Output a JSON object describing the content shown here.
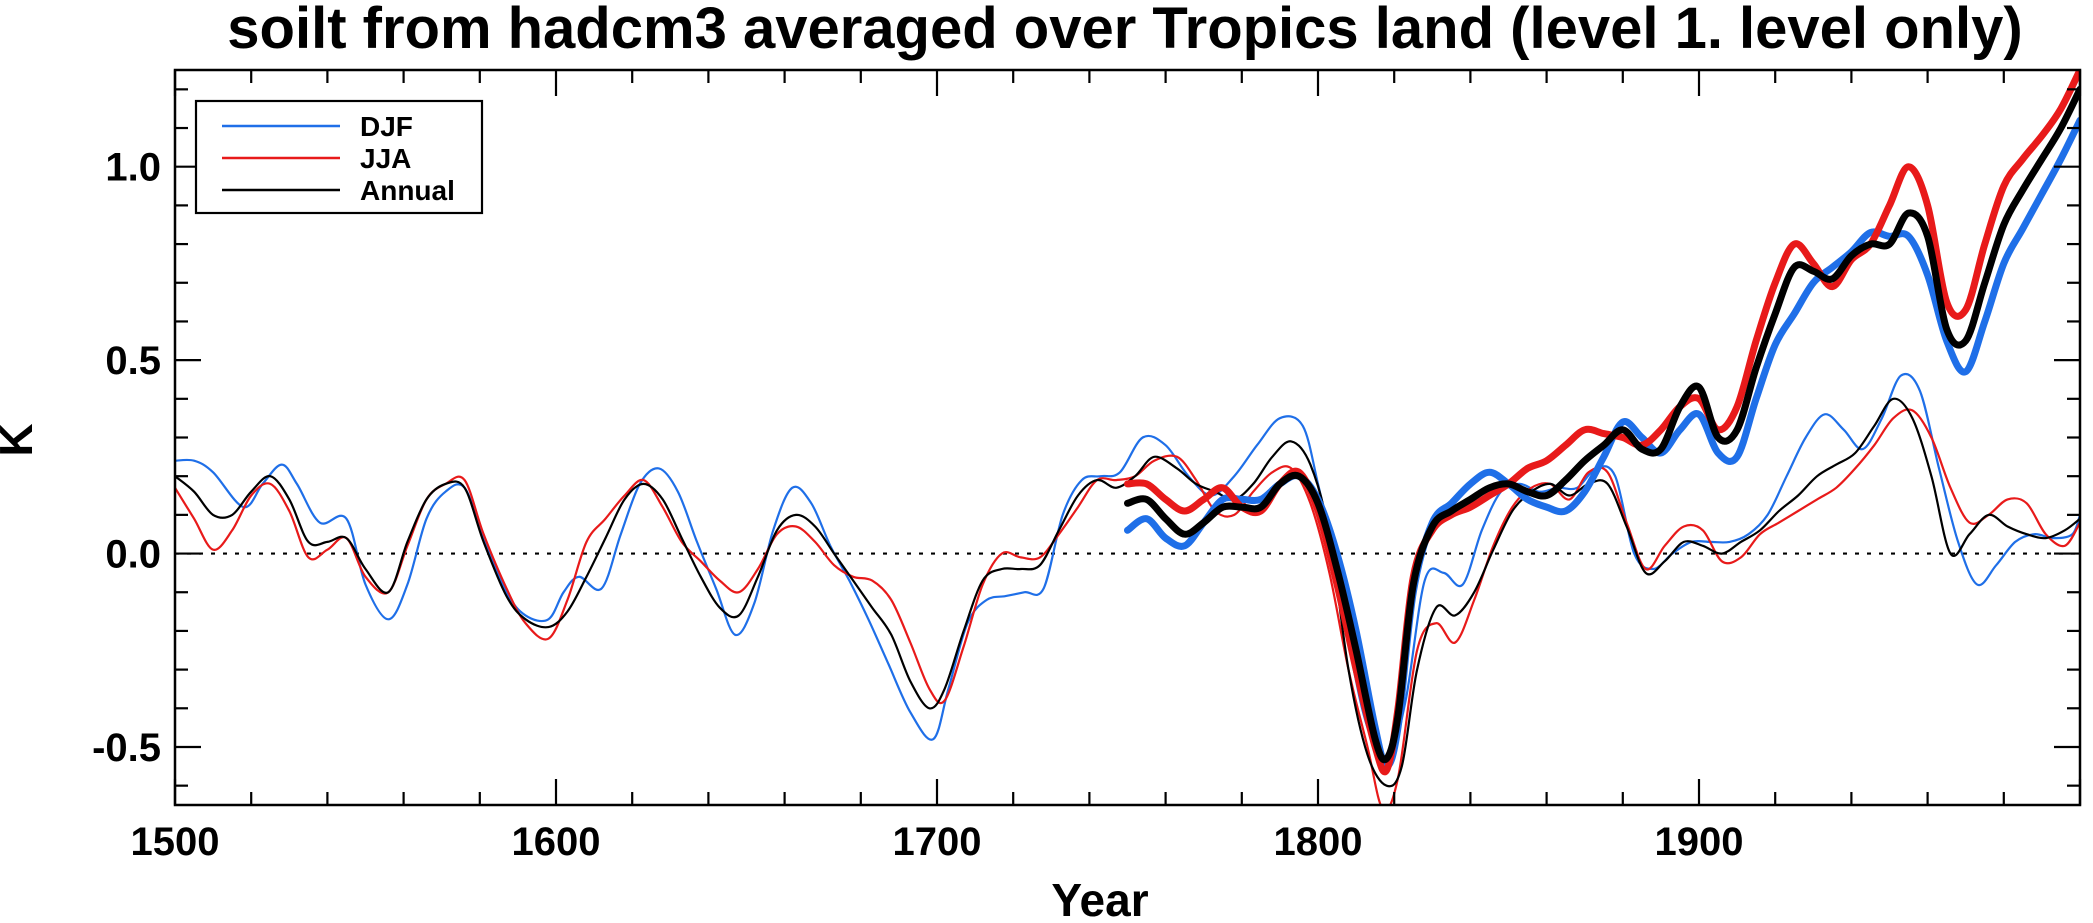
{
  "chart_data": {
    "type": "line",
    "title": "soilt from hadcm3 averaged over Tropics land (level 1. level only)",
    "xlabel": "Year",
    "ylabel": "K",
    "xlim": [
      1500,
      2000
    ],
    "ylim": [
      -0.65,
      1.25
    ],
    "x_ticks": [
      1500,
      1600,
      1700,
      1800,
      1900
    ],
    "x_tick_labels": [
      "1500",
      "1600",
      "1700",
      "1800",
      "1900"
    ],
    "y_ticks": [
      -0.5,
      0.0,
      0.5,
      1.0
    ],
    "y_tick_labels": [
      "-0.5",
      "0.0",
      "0.5",
      "1.0"
    ],
    "reference_line": 0.0,
    "legend": {
      "position": "top-left",
      "entries": [
        {
          "label": "DJF",
          "color": "#1f6fe8"
        },
        {
          "label": "JJA",
          "color": "#e81a1a"
        },
        {
          "label": "Annual",
          "color": "#000000"
        }
      ]
    },
    "series": [
      {
        "name": "DJF",
        "style": "thin",
        "color": "#1f6fe8",
        "x": [
          1500,
          1505,
          1510,
          1518,
          1523,
          1528,
          1532,
          1538,
          1545,
          1550,
          1556,
          1561,
          1566,
          1571,
          1576,
          1581,
          1587,
          1592,
          1598,
          1602,
          1606,
          1612,
          1617,
          1622,
          1627,
          1632,
          1637,
          1642,
          1647,
          1652,
          1657,
          1662,
          1667,
          1672,
          1677,
          1682,
          1687,
          1693,
          1699,
          1703,
          1708,
          1713,
          1718,
          1723,
          1728,
          1733,
          1738,
          1743,
          1748,
          1754,
          1760,
          1766,
          1772,
          1778,
          1784,
          1790,
          1796,
          1800,
          1804,
          1809,
          1813,
          1818,
          1823,
          1828,
          1833,
          1838,
          1843,
          1848,
          1853,
          1858,
          1863,
          1868,
          1873,
          1878,
          1883,
          1888,
          1893,
          1898,
          1903,
          1908,
          1913,
          1918,
          1923,
          1928,
          1933,
          1938,
          1943,
          1948,
          1953,
          1958,
          1963,
          1968,
          1973,
          1978,
          1983,
          1988,
          1993,
          1998,
          2000
        ],
        "y": [
          0.24,
          0.24,
          0.21,
          0.12,
          0.18,
          0.23,
          0.18,
          0.08,
          0.09,
          -0.08,
          -0.17,
          -0.08,
          0.09,
          0.16,
          0.17,
          0.04,
          -0.1,
          -0.16,
          -0.17,
          -0.1,
          -0.06,
          -0.09,
          0.05,
          0.18,
          0.22,
          0.16,
          0.03,
          -0.09,
          -0.21,
          -0.13,
          0.06,
          0.17,
          0.13,
          0.02,
          -0.07,
          -0.17,
          -0.28,
          -0.41,
          -0.48,
          -0.35,
          -0.18,
          -0.12,
          -0.11,
          -0.1,
          -0.09,
          0.1,
          0.19,
          0.2,
          0.21,
          0.3,
          0.28,
          0.2,
          0.15,
          0.2,
          0.28,
          0.35,
          0.33,
          0.18,
          0.0,
          -0.28,
          -0.45,
          -0.55,
          -0.38,
          -0.07,
          -0.05,
          -0.08,
          0.06,
          0.16,
          0.18,
          0.16,
          0.17,
          0.17,
          0.22,
          0.2,
          0.0,
          -0.04,
          0.0,
          0.03,
          0.03,
          0.03,
          0.05,
          0.1,
          0.2,
          0.3,
          0.36,
          0.32,
          0.27,
          0.35,
          0.46,
          0.42,
          0.22,
          0.03,
          -0.08,
          -0.03,
          0.03,
          0.05,
          0.04,
          0.05,
          0.1
        ]
      },
      {
        "name": "JJA",
        "style": "thin",
        "color": "#e81a1a",
        "x": [
          1500,
          1505,
          1510,
          1515,
          1520,
          1525,
          1530,
          1535,
          1540,
          1545,
          1550,
          1556,
          1561,
          1566,
          1571,
          1576,
          1581,
          1587,
          1592,
          1598,
          1603,
          1608,
          1613,
          1618,
          1623,
          1628,
          1633,
          1638,
          1643,
          1648,
          1653,
          1658,
          1663,
          1668,
          1673,
          1678,
          1683,
          1688,
          1693,
          1698,
          1702,
          1707,
          1712,
          1717,
          1722,
          1727,
          1732,
          1737,
          1742,
          1747,
          1752,
          1757,
          1763,
          1768,
          1773,
          1778,
          1783,
          1788,
          1793,
          1798,
          1803,
          1808,
          1813,
          1817,
          1821,
          1826,
          1831,
          1836,
          1841,
          1846,
          1851,
          1856,
          1861,
          1866,
          1871,
          1876,
          1881,
          1886,
          1891,
          1896,
          1901,
          1906,
          1911,
          1916,
          1921,
          1926,
          1931,
          1936,
          1941,
          1946,
          1951,
          1956,
          1961,
          1966,
          1971,
          1976,
          1981,
          1986,
          1991,
          1996,
          2000
        ],
        "y": [
          0.17,
          0.09,
          0.01,
          0.06,
          0.15,
          0.18,
          0.11,
          -0.01,
          0.01,
          0.04,
          -0.06,
          -0.1,
          0.02,
          0.14,
          0.18,
          0.19,
          0.05,
          -0.09,
          -0.18,
          -0.22,
          -0.12,
          0.03,
          0.09,
          0.15,
          0.19,
          0.12,
          0.03,
          -0.02,
          -0.07,
          -0.1,
          -0.04,
          0.05,
          0.07,
          0.03,
          -0.03,
          -0.06,
          -0.07,
          -0.12,
          -0.23,
          -0.35,
          -0.38,
          -0.24,
          -0.08,
          0.0,
          -0.01,
          -0.01,
          0.05,
          0.12,
          0.19,
          0.19,
          0.2,
          0.24,
          0.25,
          0.19,
          0.11,
          0.1,
          0.16,
          0.21,
          0.22,
          0.13,
          -0.05,
          -0.3,
          -0.5,
          -0.66,
          -0.58,
          -0.25,
          -0.18,
          -0.23,
          -0.12,
          0.02,
          0.12,
          0.17,
          0.18,
          0.14,
          0.21,
          0.21,
          0.08,
          -0.04,
          0.02,
          0.07,
          0.06,
          -0.02,
          -0.01,
          0.05,
          0.08,
          0.11,
          0.14,
          0.17,
          0.22,
          0.28,
          0.35,
          0.37,
          0.3,
          0.17,
          0.08,
          0.1,
          0.14,
          0.13,
          0.05,
          0.02,
          0.08
        ]
      },
      {
        "name": "Annual",
        "style": "thin",
        "color": "#000000",
        "x": [
          1500,
          1505,
          1510,
          1515,
          1520,
          1525,
          1530,
          1535,
          1540,
          1545,
          1550,
          1556,
          1561,
          1566,
          1571,
          1576,
          1581,
          1587,
          1592,
          1598,
          1603,
          1608,
          1613,
          1618,
          1623,
          1628,
          1633,
          1638,
          1643,
          1648,
          1653,
          1658,
          1663,
          1668,
          1673,
          1678,
          1683,
          1688,
          1693,
          1698,
          1702,
          1707,
          1712,
          1717,
          1722,
          1727,
          1732,
          1737,
          1742,
          1747,
          1752,
          1757,
          1763,
          1768,
          1773,
          1778,
          1783,
          1788,
          1793,
          1798,
          1803,
          1808,
          1813,
          1818,
          1822,
          1826,
          1831,
          1836,
          1841,
          1846,
          1851,
          1856,
          1861,
          1866,
          1871,
          1876,
          1881,
          1886,
          1891,
          1896,
          1901,
          1906,
          1911,
          1916,
          1921,
          1926,
          1931,
          1936,
          1941,
          1946,
          1951,
          1956,
          1961,
          1966,
          1971,
          1976,
          1981,
          1986,
          1991,
          1996,
          2000
        ],
        "y": [
          0.2,
          0.16,
          0.1,
          0.1,
          0.16,
          0.2,
          0.14,
          0.03,
          0.03,
          0.04,
          -0.04,
          -0.1,
          0.03,
          0.14,
          0.18,
          0.17,
          0.03,
          -0.11,
          -0.17,
          -0.19,
          -0.15,
          -0.06,
          0.04,
          0.14,
          0.18,
          0.14,
          0.04,
          -0.06,
          -0.14,
          -0.16,
          -0.06,
          0.06,
          0.1,
          0.07,
          0.0,
          -0.07,
          -0.14,
          -0.21,
          -0.33,
          -0.4,
          -0.35,
          -0.2,
          -0.07,
          -0.04,
          -0.04,
          -0.03,
          0.06,
          0.15,
          0.19,
          0.17,
          0.2,
          0.25,
          0.22,
          0.18,
          0.16,
          0.14,
          0.18,
          0.25,
          0.29,
          0.23,
          0.05,
          -0.3,
          -0.52,
          -0.6,
          -0.55,
          -0.3,
          -0.14,
          -0.16,
          -0.1,
          0.01,
          0.11,
          0.16,
          0.18,
          0.15,
          0.18,
          0.18,
          0.07,
          -0.05,
          -0.02,
          0.03,
          0.02,
          0.0,
          0.03,
          0.06,
          0.11,
          0.15,
          0.2,
          0.23,
          0.26,
          0.33,
          0.4,
          0.35,
          0.2,
          0.0,
          0.05,
          0.1,
          0.07,
          0.05,
          0.04,
          0.06,
          0.09
        ]
      },
      {
        "name": "DJF",
        "style": "thick",
        "color": "#1f6fe8",
        "x": [
          1750,
          1755,
          1760,
          1765,
          1770,
          1775,
          1780,
          1785,
          1790,
          1795,
          1800,
          1805,
          1810,
          1815,
          1818,
          1821,
          1825,
          1830,
          1835,
          1840,
          1845,
          1850,
          1855,
          1860,
          1865,
          1870,
          1875,
          1880,
          1885,
          1890,
          1895,
          1900,
          1905,
          1910,
          1915,
          1920,
          1925,
          1930,
          1935,
          1940,
          1945,
          1950,
          1955,
          1960,
          1965,
          1970,
          1975,
          1980,
          1985,
          1990,
          1995,
          2000
        ],
        "y": [
          0.06,
          0.09,
          0.04,
          0.02,
          0.08,
          0.14,
          0.14,
          0.14,
          0.18,
          0.2,
          0.14,
          0.0,
          -0.2,
          -0.45,
          -0.55,
          -0.45,
          -0.1,
          0.08,
          0.13,
          0.18,
          0.21,
          0.18,
          0.14,
          0.12,
          0.11,
          0.16,
          0.25,
          0.34,
          0.3,
          0.26,
          0.32,
          0.36,
          0.26,
          0.25,
          0.4,
          0.54,
          0.62,
          0.7,
          0.74,
          0.78,
          0.83,
          0.82,
          0.82,
          0.72,
          0.55,
          0.47,
          0.6,
          0.75,
          0.84,
          0.93,
          1.02,
          1.12
        ]
      },
      {
        "name": "JJA",
        "style": "thick",
        "color": "#e81a1a",
        "x": [
          1750,
          1755,
          1760,
          1765,
          1770,
          1775,
          1780,
          1785,
          1790,
          1795,
          1800,
          1805,
          1810,
          1815,
          1818,
          1821,
          1825,
          1830,
          1835,
          1840,
          1845,
          1850,
          1855,
          1860,
          1865,
          1870,
          1875,
          1880,
          1885,
          1890,
          1895,
          1900,
          1905,
          1910,
          1915,
          1920,
          1925,
          1930,
          1935,
          1940,
          1945,
          1950,
          1955,
          1960,
          1965,
          1970,
          1975,
          1980,
          1985,
          1990,
          1995,
          2000
        ],
        "y": [
          0.18,
          0.18,
          0.14,
          0.11,
          0.14,
          0.17,
          0.12,
          0.11,
          0.18,
          0.21,
          0.11,
          -0.08,
          -0.3,
          -0.5,
          -0.56,
          -0.4,
          -0.06,
          0.06,
          0.1,
          0.12,
          0.15,
          0.18,
          0.22,
          0.24,
          0.28,
          0.32,
          0.31,
          0.3,
          0.28,
          0.32,
          0.38,
          0.4,
          0.32,
          0.38,
          0.55,
          0.7,
          0.8,
          0.75,
          0.69,
          0.76,
          0.8,
          0.9,
          1.0,
          0.9,
          0.65,
          0.63,
          0.8,
          0.95,
          1.02,
          1.08,
          1.15,
          1.25
        ]
      },
      {
        "name": "Annual",
        "style": "thick",
        "color": "#000000",
        "x": [
          1750,
          1755,
          1760,
          1765,
          1770,
          1775,
          1780,
          1785,
          1790,
          1795,
          1800,
          1805,
          1810,
          1815,
          1818,
          1821,
          1825,
          1830,
          1835,
          1840,
          1845,
          1850,
          1855,
          1860,
          1865,
          1870,
          1875,
          1880,
          1885,
          1890,
          1895,
          1900,
          1905,
          1910,
          1915,
          1920,
          1925,
          1930,
          1935,
          1940,
          1945,
          1950,
          1955,
          1960,
          1965,
          1970,
          1975,
          1980,
          1985,
          1990,
          1995,
          2000
        ],
        "y": [
          0.13,
          0.14,
          0.09,
          0.05,
          0.08,
          0.12,
          0.12,
          0.12,
          0.18,
          0.2,
          0.13,
          -0.04,
          -0.25,
          -0.48,
          -0.53,
          -0.42,
          -0.08,
          0.07,
          0.11,
          0.14,
          0.17,
          0.18,
          0.16,
          0.15,
          0.19,
          0.24,
          0.28,
          0.32,
          0.27,
          0.27,
          0.38,
          0.43,
          0.3,
          0.32,
          0.48,
          0.62,
          0.74,
          0.73,
          0.71,
          0.77,
          0.8,
          0.8,
          0.88,
          0.82,
          0.58,
          0.55,
          0.7,
          0.85,
          0.94,
          1.02,
          1.1,
          1.2
        ]
      }
    ]
  }
}
